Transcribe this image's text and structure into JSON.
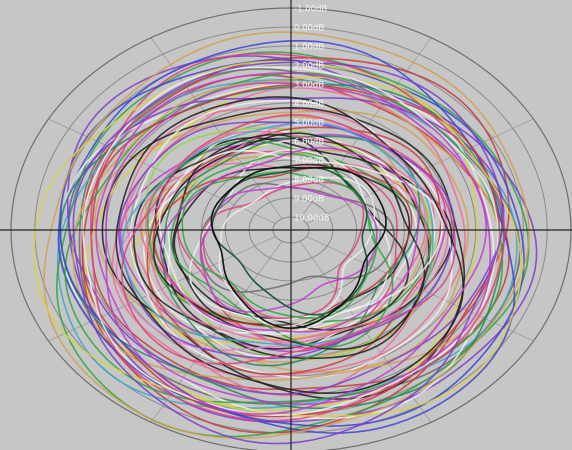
{
  "chart_data": {
    "type": "polar",
    "r_axis": {
      "unit": "dB",
      "tick_labels": [
        "-1.00dB",
        "0.00dB",
        "1.00dB",
        "2.00dB",
        "3.00dB",
        "4.00dB",
        "5.00dB",
        "6.00dB",
        "7.00dB",
        "8.00dB",
        "9.00dB",
        "10.00dB"
      ],
      "tick_values": [
        -1,
        0,
        1,
        2,
        3,
        4,
        5,
        6,
        7,
        8,
        9,
        10
      ],
      "range": [
        -1,
        10.5
      ]
    },
    "grid": true,
    "theta_axes": [
      "horizontal",
      "vertical"
    ],
    "series_count": 60,
    "series_level_range_db": [
      0.2,
      7.6
    ],
    "palette": [
      "#e0407c",
      "#c23ad0",
      "#3a43d6",
      "#2aa640",
      "#d8d23c",
      "#c83a3a",
      "#1c1c1c",
      "#eeeeee",
      "#7b3ccf",
      "#3aa8c8",
      "#e07ad0",
      "#8adb3a",
      "#6a6a6a",
      "#d0a050",
      "#1e8a5a",
      "#ee6a9a"
    ],
    "highlighted_series": [
      {
        "color": "#1f5a3a",
        "level_db": 7.3
      },
      {
        "color": "#111111",
        "level_db": 6.9
      }
    ]
  }
}
